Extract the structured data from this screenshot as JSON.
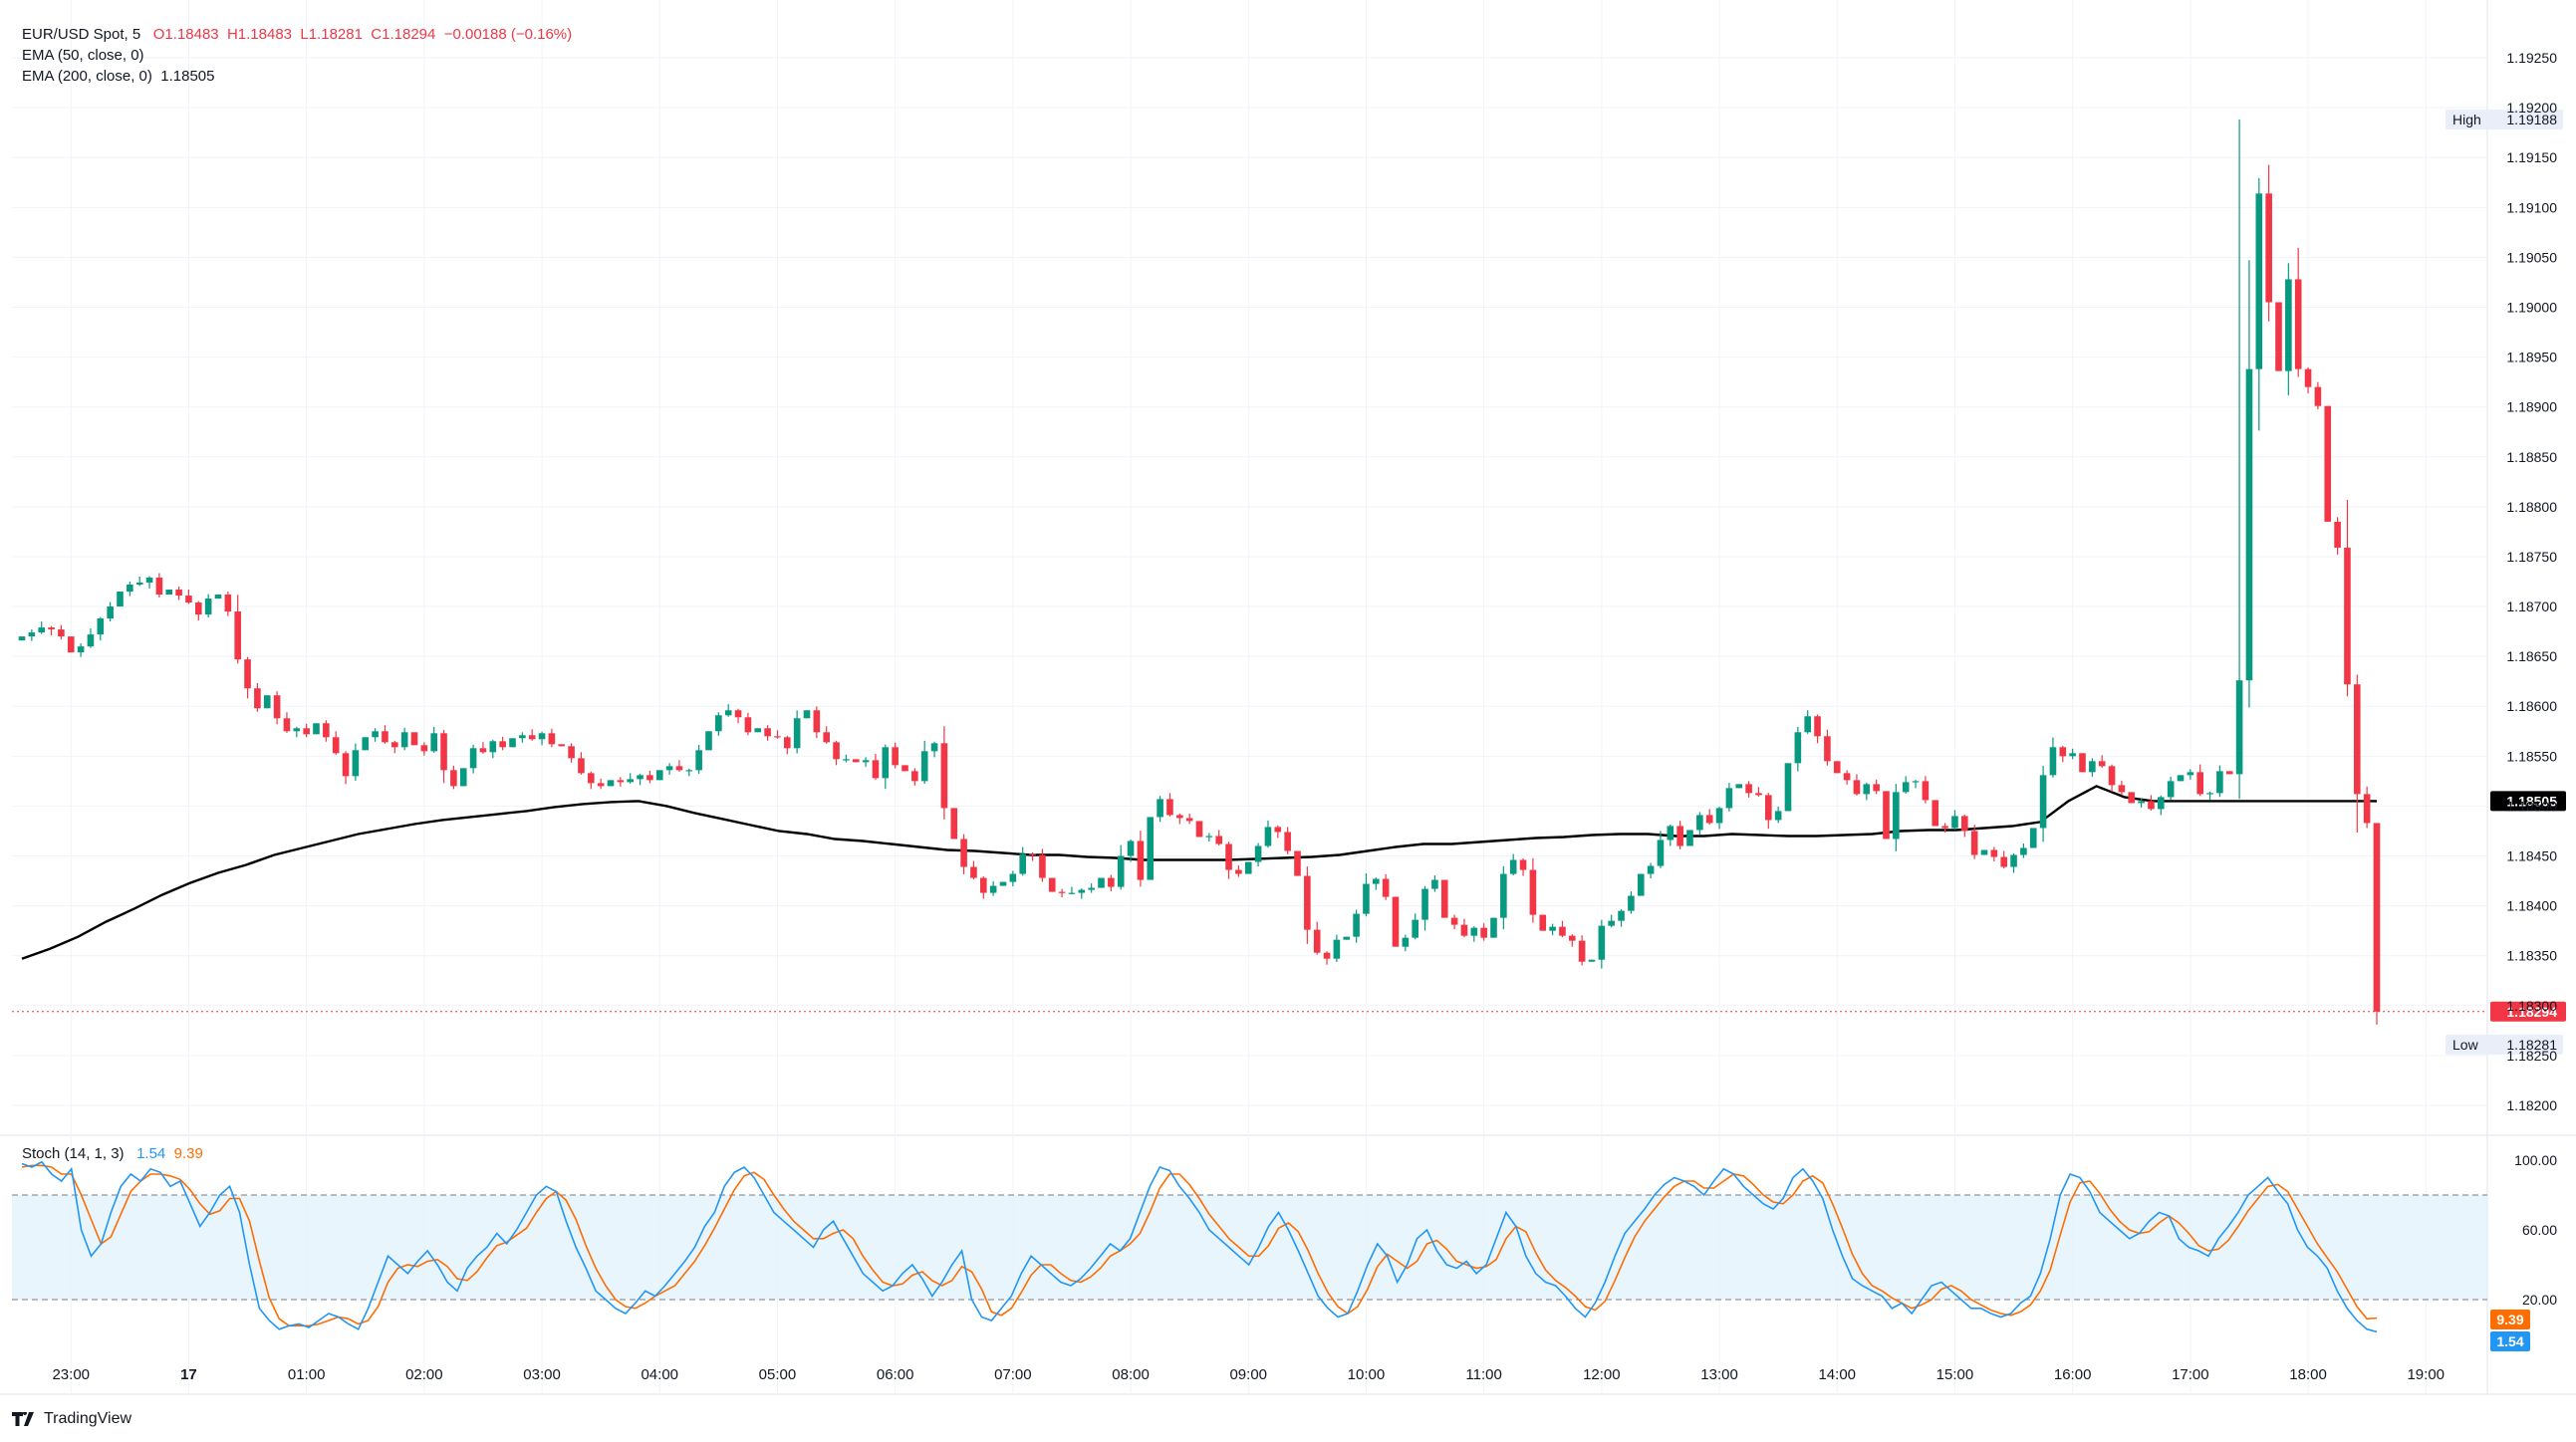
{
  "header": {
    "symbol": "EUR/USD Spot, 5",
    "open": "O1.18483",
    "high": "H1.18483",
    "low": "L1.18281",
    "close": "C1.18294",
    "change": "−0.00188 (−0.16%)",
    "ema50": "EMA (50, close, 0)",
    "ema200_label": "EMA (200, close, 0)",
    "ema200_value": "1.18505"
  },
  "stoch_legend": {
    "label": "Stoch (14, 1, 3)",
    "k": "1.54",
    "d": "9.39"
  },
  "branding": {
    "name": "TradingView"
  },
  "colors": {
    "up": "#089981",
    "down": "#f23645",
    "ema200": "#000000",
    "stoch_k": "#2196f3",
    "stoch_d": "#ff6d00",
    "band": "#e3f2fd"
  },
  "chart_data": [
    {
      "type": "candlestick",
      "yaxis": {
        "min": 1.1818,
        "max": 1.1928,
        "ticks": [
          1.1925,
          1.192,
          1.1915,
          1.191,
          1.1905,
          1.19,
          1.1895,
          1.189,
          1.1885,
          1.188,
          1.1875,
          1.187,
          1.1865,
          1.186,
          1.1855,
          1.185,
          1.1845,
          1.184,
          1.1835,
          1.183,
          1.1825,
          1.182
        ],
        "tick_labels": [
          "1.19250",
          "1.19200",
          "1.19150",
          "1.19100",
          "1.19050",
          "1.19000",
          "1.18950",
          "1.18900",
          "1.18850",
          "1.18800",
          "1.18750",
          "1.18700",
          "1.18650",
          "1.18600",
          "1.18550",
          "1.18500",
          "1.18450",
          "1.18400",
          "1.18350",
          "1.18300",
          "1.18250",
          "1.18200"
        ]
      },
      "xaxis": {
        "start": "22:35",
        "bar_minutes": 5,
        "tick_labels": [
          "23:00",
          "17",
          "01:00",
          "02:00",
          "03:00",
          "04:00",
          "05:00",
          "06:00",
          "07:00",
          "08:00",
          "09:00",
          "10:00",
          "11:00",
          "12:00",
          "13:00",
          "14:00",
          "15:00",
          "16:00",
          "17:00",
          "18:00",
          "19:00"
        ]
      },
      "high_marker": {
        "label": "High",
        "value": 1.19188,
        "text": "1.19188"
      },
      "low_marker": {
        "label": "Low",
        "value": 1.18281,
        "text": "1.18281"
      },
      "last_price": {
        "value": 1.18294,
        "text": "1.18294"
      },
      "ema200_badge": {
        "value": 1.18505,
        "text": "1.18505"
      },
      "closes": [
        1.1867,
        1.18674,
        1.18679,
        1.18677,
        1.1867,
        1.18654,
        1.1866,
        1.18672,
        1.18688,
        1.187,
        1.18715,
        1.18722,
        1.18724,
        1.18729,
        1.18712,
        1.18717,
        1.18711,
        1.18704,
        1.18692,
        1.18708,
        1.18712,
        1.18695,
        1.18647,
        1.18618,
        1.18598,
        1.18611,
        1.18588,
        1.18575,
        1.18578,
        1.18572,
        1.18583,
        1.18569,
        1.18553,
        1.1853,
        1.18556,
        1.18569,
        1.18575,
        1.18564,
        1.18559,
        1.18574,
        1.18561,
        1.18555,
        1.18573,
        1.18536,
        1.1852,
        1.18538,
        1.18558,
        1.18554,
        1.18565,
        1.18559,
        1.18568,
        1.18571,
        1.18567,
        1.18573,
        1.18562,
        1.1856,
        1.18548,
        1.18533,
        1.18523,
        1.1852,
        1.18526,
        1.18524,
        1.18527,
        1.18531,
        1.18526,
        1.18536,
        1.1854,
        1.18536,
        1.18536,
        1.18556,
        1.18575,
        1.18591,
        1.18596,
        1.18589,
        1.18574,
        1.18578,
        1.1857,
        1.18569,
        1.18558,
        1.18588,
        1.18596,
        1.18574,
        1.18564,
        1.18547,
        1.18547,
        1.18544,
        1.18546,
        1.18528,
        1.18559,
        1.18541,
        1.18535,
        1.18525,
        1.18555,
        1.18563,
        1.18498,
        1.18467,
        1.18439,
        1.18428,
        1.18413,
        1.1842,
        1.18424,
        1.18432,
        1.18452,
        1.18451,
        1.18428,
        1.18414,
        1.18413,
        1.18413,
        1.18416,
        1.18418,
        1.18428,
        1.18419,
        1.1845,
        1.18465,
        1.18426,
        1.18489,
        1.18507,
        1.18491,
        1.18488,
        1.18485,
        1.18469,
        1.1847,
        1.18462,
        1.18436,
        1.18432,
        1.18444,
        1.1846,
        1.18479,
        1.18474,
        1.18455,
        1.1843,
        1.18376,
        1.18353,
        1.18347,
        1.18366,
        1.18369,
        1.18392,
        1.18422,
        1.18427,
        1.18409,
        1.18359,
        1.18368,
        1.18386,
        1.18417,
        1.18426,
        1.18388,
        1.18381,
        1.1837,
        1.18378,
        1.18368,
        1.18388,
        1.18432,
        1.18446,
        1.18436,
        1.18391,
        1.18375,
        1.18379,
        1.1837,
        1.18365,
        1.18344,
        1.18346,
        1.1838,
        1.18385,
        1.18395,
        1.1841,
        1.18432,
        1.1844,
        1.18466,
        1.1848,
        1.1846,
        1.18476,
        1.18491,
        1.18483,
        1.18498,
        1.18518,
        1.18522,
        1.18513,
        1.18511,
        1.18486,
        1.18495,
        1.18543,
        1.18574,
        1.1859,
        1.1857,
        1.18545,
        1.18533,
        1.18526,
        1.18512,
        1.18522,
        1.18515,
        1.18467,
        1.18514,
        1.18524,
        1.18525,
        1.18506,
        1.1848,
        1.18478,
        1.1849,
        1.18475,
        1.18451,
        1.18456,
        1.18449,
        1.18439,
        1.18451,
        1.18458,
        1.18478,
        1.18531,
        1.18559,
        1.1855,
        1.18553,
        1.18534,
        1.18545,
        1.1854,
        1.18521,
        1.18514,
        1.18503,
        1.18505,
        1.18497,
        1.18509,
        1.18525,
        1.18531,
        1.18534,
        1.18512,
        1.18513,
        1.18535,
        1.18532,
        1.18626,
        1.18938,
        1.19114,
        1.19005,
        1.18936,
        1.19028,
        1.18938,
        1.1892,
        1.18901,
        1.18785,
        1.18759,
        1.18622,
        1.18512,
        1.18483,
        1.18294
      ],
      "ema200": [
        1.18347,
        1.18357,
        1.18369,
        1.18384,
        1.18397,
        1.18411,
        1.18423,
        1.18433,
        1.18441,
        1.18451,
        1.18458,
        1.18465,
        1.18472,
        1.18477,
        1.18482,
        1.18486,
        1.18489,
        1.18492,
        1.18495,
        1.18499,
        1.18502,
        1.18504,
        1.18505,
        1.185,
        1.18493,
        1.18487,
        1.18481,
        1.18475,
        1.18472,
        1.18467,
        1.18465,
        1.18462,
        1.18459,
        1.18456,
        1.18455,
        1.18453,
        1.18451,
        1.18451,
        1.18449,
        1.18448,
        1.18446,
        1.18446,
        1.18446,
        1.18446,
        1.18447,
        1.18448,
        1.18449,
        1.18451,
        1.18455,
        1.18459,
        1.18462,
        1.18462,
        1.18464,
        1.18466,
        1.18468,
        1.18469,
        1.18471,
        1.18472,
        1.18472,
        1.1847,
        1.1847,
        1.18472,
        1.18471,
        1.1847,
        1.1847,
        1.18471,
        1.18472,
        1.18475,
        1.18476,
        1.18476,
        1.18478,
        1.1848,
        1.18484,
        1.18505,
        1.1852,
        1.18509,
        1.18505,
        1.18505,
        1.18505,
        1.18505,
        1.18505,
        1.18505,
        1.18505,
        1.18505,
        1.18505
      ]
    },
    {
      "type": "line",
      "title": "Stoch (14, 1, 3)",
      "ylim": [
        0,
        100
      ],
      "tick_labels": [
        "100.00",
        "60.00",
        "20.00"
      ],
      "bands": [
        20,
        80
      ],
      "series": [
        {
          "name": "%K",
          "last": 1.54,
          "values": [
            98,
            96,
            99,
            92,
            88,
            95,
            60,
            45,
            52,
            70,
            85,
            92,
            88,
            95,
            93,
            85,
            88,
            75,
            62,
            70,
            80,
            85,
            70,
            40,
            15,
            8,
            3,
            5,
            6,
            4,
            8,
            12,
            10,
            6,
            3,
            15,
            30,
            45,
            40,
            35,
            42,
            48,
            40,
            30,
            25,
            38,
            45,
            50,
            58,
            52,
            60,
            70,
            80,
            85,
            82,
            65,
            50,
            38,
            25,
            20,
            15,
            12,
            18,
            25,
            22,
            28,
            35,
            42,
            50,
            62,
            70,
            85,
            93,
            96,
            90,
            80,
            70,
            65,
            60,
            55,
            50,
            60,
            65,
            55,
            45,
            35,
            30,
            25,
            28,
            35,
            40,
            32,
            22,
            30,
            40,
            48,
            20,
            10,
            8,
            15,
            22,
            35,
            45,
            40,
            35,
            30,
            28,
            32,
            38,
            45,
            52,
            48,
            55,
            70,
            85,
            96,
            94,
            85,
            78,
            70,
            60,
            55,
            50,
            45,
            40,
            50,
            62,
            70,
            60,
            48,
            35,
            22,
            15,
            10,
            12,
            25,
            40,
            52,
            45,
            30,
            40,
            55,
            60,
            48,
            40,
            38,
            42,
            35,
            40,
            55,
            70,
            62,
            45,
            35,
            30,
            28,
            22,
            15,
            10,
            18,
            30,
            45,
            58,
            65,
            72,
            80,
            86,
            90,
            88,
            85,
            80,
            88,
            95,
            92,
            85,
            80,
            75,
            72,
            78,
            90,
            95,
            88,
            78,
            60,
            45,
            32,
            28,
            25,
            22,
            15,
            18,
            12,
            20,
            28,
            30,
            25,
            20,
            15,
            15,
            12,
            10,
            12,
            18,
            22,
            35,
            55,
            80,
            92,
            90,
            82,
            70,
            65,
            60,
            55,
            58,
            65,
            70,
            68,
            55,
            50,
            48,
            45,
            55,
            62,
            70,
            80,
            85,
            90,
            82,
            75,
            60,
            50,
            45,
            38,
            25,
            15,
            8,
            3,
            1.54
          ]
        },
        {
          "name": "%D",
          "last": 9.39,
          "values": [
            96,
            97,
            97,
            96,
            92,
            92,
            80,
            66,
            52,
            56,
            69,
            82,
            88,
            92,
            92,
            91,
            89,
            83,
            75,
            69,
            71,
            78,
            78,
            65,
            42,
            21,
            9,
            5,
            5,
            5,
            6,
            8,
            10,
            9,
            6,
            8,
            16,
            30,
            38,
            40,
            39,
            42,
            43,
            39,
            32,
            31,
            36,
            44,
            51,
            53,
            57,
            61,
            70,
            78,
            82,
            77,
            66,
            51,
            38,
            28,
            20,
            16,
            15,
            18,
            22,
            25,
            28,
            35,
            42,
            51,
            61,
            72,
            83,
            91,
            93,
            89,
            80,
            72,
            65,
            60,
            55,
            55,
            58,
            60,
            55,
            45,
            37,
            30,
            28,
            29,
            34,
            36,
            31,
            28,
            31,
            39,
            36,
            26,
            13,
            11,
            15,
            24,
            34,
            40,
            40,
            35,
            31,
            30,
            33,
            38,
            45,
            48,
            52,
            58,
            70,
            84,
            92,
            92,
            86,
            78,
            69,
            62,
            55,
            50,
            45,
            45,
            51,
            61,
            64,
            59,
            48,
            35,
            24,
            16,
            12,
            16,
            26,
            39,
            46,
            42,
            38,
            42,
            52,
            54,
            49,
            42,
            40,
            38,
            39,
            43,
            55,
            62,
            59,
            47,
            37,
            31,
            27,
            22,
            16,
            14,
            19,
            31,
            44,
            56,
            65,
            72,
            79,
            85,
            88,
            88,
            84,
            84,
            88,
            92,
            91,
            86,
            80,
            76,
            75,
            80,
            88,
            91,
            87,
            75,
            61,
            46,
            35,
            28,
            25,
            21,
            18,
            15,
            17,
            20,
            26,
            28,
            25,
            20,
            17,
            14,
            12,
            11,
            13,
            17,
            25,
            37,
            57,
            76,
            87,
            88,
            81,
            72,
            65,
            60,
            58,
            59,
            64,
            68,
            64,
            58,
            51,
            48,
            49,
            54,
            62,
            71,
            78,
            85,
            86,
            82,
            72,
            62,
            52,
            44,
            36,
            26,
            16,
            9,
            9.39
          ]
        }
      ]
    }
  ]
}
